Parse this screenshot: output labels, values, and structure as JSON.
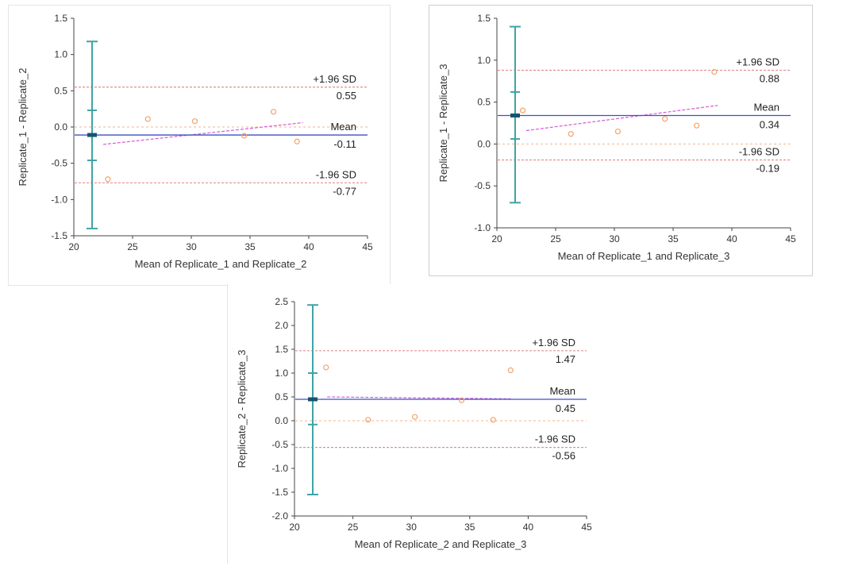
{
  "chart_data": [
    {
      "type": "bland-altman",
      "xlabel": "Mean of Replicate_1 and Replicate_2",
      "ylabel": "Replicate_1 - Replicate_2",
      "xlim": [
        20,
        45
      ],
      "ylim": [
        -1.5,
        1.5
      ],
      "xticks": [
        20,
        25,
        30,
        35,
        40,
        45
      ],
      "yticks": [
        -1.5,
        -1.0,
        -0.5,
        0.0,
        0.5,
        1.0,
        1.5
      ],
      "ytick_labels": [
        "-1.5",
        "-1.0",
        "-0.5",
        "0.0",
        "0.5",
        "1.0",
        "1.5"
      ],
      "mean": -0.11,
      "upper": 0.55,
      "lower": -0.77,
      "upper_label": "+1.96 SD",
      "mean_label": "Mean",
      "lower_label": "-1.96 SD",
      "upper_value": "0.55",
      "mean_value": "-0.11",
      "lower_value": "-0.77",
      "points": [
        [
          22.9,
          -0.72
        ],
        [
          26.3,
          0.11
        ],
        [
          30.3,
          0.08
        ],
        [
          34.5,
          -0.12
        ],
        [
          37.0,
          0.21
        ],
        [
          39.0,
          -0.2
        ]
      ],
      "regression": [
        [
          22.5,
          -0.24
        ],
        [
          39.5,
          0.06
        ]
      ],
      "ci_mean": [
        -0.46,
        0.23
      ],
      "ci_upper": [
        0.23,
        1.18
      ],
      "ci_lower": [
        -1.4,
        -0.46
      ]
    },
    {
      "type": "bland-altman",
      "xlabel": "Mean of Replicate_1 and Replicate_3",
      "ylabel": "Replicate_1 - Replicate_3",
      "xlim": [
        20,
        45
      ],
      "ylim": [
        -1.0,
        1.5
      ],
      "xticks": [
        20,
        25,
        30,
        35,
        40,
        45
      ],
      "yticks": [
        -1.0,
        -0.5,
        0.0,
        0.5,
        1.0,
        1.5
      ],
      "ytick_labels": [
        "-1.0",
        "-0.5",
        "0.0",
        "0.5",
        "1.0",
        "1.5"
      ],
      "mean": 0.34,
      "upper": 0.88,
      "lower": -0.19,
      "upper_label": "+1.96 SD",
      "mean_label": "Mean",
      "lower_label": "-1.96 SD",
      "upper_value": "0.88",
      "mean_value": "0.34",
      "lower_value": "-0.19",
      "points": [
        [
          22.2,
          0.4
        ],
        [
          26.3,
          0.12
        ],
        [
          30.3,
          0.15
        ],
        [
          34.3,
          0.3
        ],
        [
          37.0,
          0.22
        ],
        [
          38.5,
          0.86
        ]
      ],
      "regression": [
        [
          22.5,
          0.16
        ],
        [
          38.8,
          0.46
        ]
      ],
      "ci_mean": [
        0.06,
        0.62
      ],
      "ci_upper": [
        0.62,
        1.4
      ],
      "ci_lower": [
        -0.7,
        0.06
      ]
    },
    {
      "type": "bland-altman",
      "xlabel": "Mean of Replicate_2 and Replicate_3",
      "ylabel": "Replicate_2 - Replicate_3",
      "xlim": [
        20,
        45
      ],
      "ylim": [
        -2.0,
        2.5
      ],
      "xticks": [
        20,
        25,
        30,
        35,
        40,
        45
      ],
      "yticks": [
        -2.0,
        -1.5,
        -1.0,
        -0.5,
        0.0,
        0.5,
        1.0,
        1.5,
        2.0,
        2.5
      ],
      "ytick_labels": [
        "-2.0",
        "-1.5",
        "-1.0",
        "-0.5",
        "0.0",
        "0.5",
        "1.0",
        "1.5",
        "2.0",
        "2.5"
      ],
      "mean": 0.45,
      "upper": 1.47,
      "lower": -0.56,
      "upper_label": "+1.96 SD",
      "mean_label": "Mean",
      "lower_label": "-1.96 SD",
      "upper_value": "1.47",
      "mean_value": "0.45",
      "lower_value": "-0.56",
      "points": [
        [
          22.7,
          1.12
        ],
        [
          26.3,
          0.02
        ],
        [
          30.3,
          0.08
        ],
        [
          34.3,
          0.43
        ],
        [
          37.0,
          0.02
        ],
        [
          38.5,
          1.06
        ]
      ],
      "regression": [
        [
          22.8,
          0.5
        ],
        [
          38.5,
          0.46
        ]
      ],
      "ci_mean": [
        -0.08,
        1.0
      ],
      "ci_upper": [
        1.0,
        2.43
      ],
      "ci_lower": [
        -1.55,
        -0.08
      ]
    }
  ],
  "colors": {
    "axis": "#444444",
    "mean_line": "#3d4fc4",
    "limit_line": "#e38f8f",
    "zero_line": "#f2b58c",
    "points": "#f2a36a",
    "regression": "#d65ad6",
    "ci": "#3fa4a6",
    "mean_marker": "#16556e"
  }
}
